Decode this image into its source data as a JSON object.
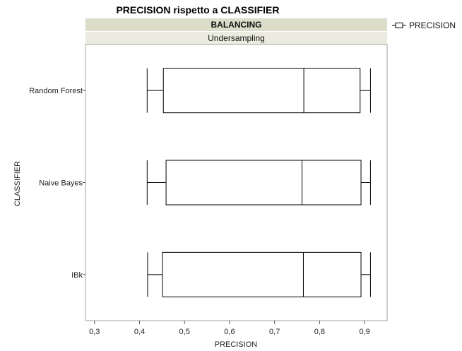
{
  "chart_data": {
    "type": "boxplot",
    "title": "PRECISION rispetto a CLASSIFIER",
    "group_header": "BALANCING",
    "group_value": "Undersampling",
    "xlabel": "PRECISION",
    "ylabel": "CLASSIFIER",
    "xlim": [
      0.28,
      0.95
    ],
    "xticks": [
      "0,3",
      "0,4",
      "0,5",
      "0,6",
      "0,7",
      "0,8",
      "0,9"
    ],
    "xtick_values": [
      0.3,
      0.4,
      0.5,
      0.6,
      0.7,
      0.8,
      0.9
    ],
    "legend": "PRECISION",
    "categories": [
      "Random Forest",
      "Naive Bayes",
      "IBk"
    ],
    "boxes": [
      {
        "category": "Random Forest",
        "min": 0.417,
        "q1": 0.453,
        "median": 0.765,
        "q3": 0.89,
        "max": 0.913
      },
      {
        "category": "Naive Bayes",
        "min": 0.417,
        "q1": 0.459,
        "median": 0.761,
        "q3": 0.892,
        "max": 0.913
      },
      {
        "category": "IBk",
        "min": 0.418,
        "q1": 0.451,
        "median": 0.764,
        "q3": 0.892,
        "max": 0.913
      }
    ]
  }
}
